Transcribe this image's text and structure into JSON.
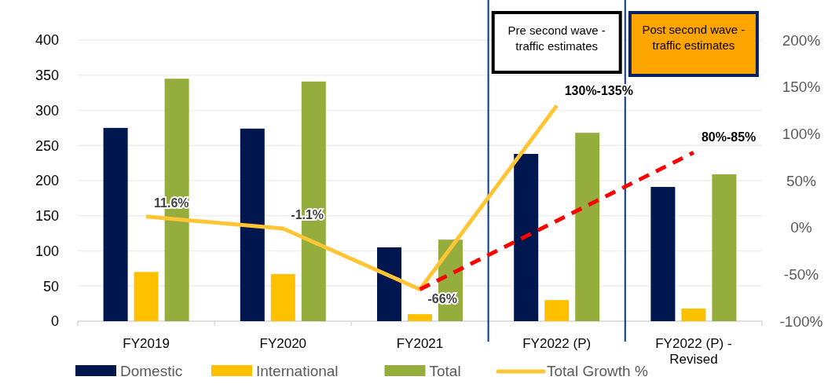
{
  "chart_data": {
    "type": "bar",
    "categories": [
      "FY2019",
      "FY2020",
      "FY2021",
      "FY2022 (P)",
      "FY2022 (P) - Revised"
    ],
    "series": [
      {
        "name": "Domestic",
        "color": "#00164e",
        "values": [
          275,
          274,
          105,
          238,
          191
        ]
      },
      {
        "name": "International",
        "color": "#ffc000",
        "values": [
          70,
          67,
          10,
          30,
          18
        ]
      },
      {
        "name": "Total",
        "color": "#94ad3c",
        "values": [
          345,
          341,
          116,
          268,
          209
        ]
      },
      {
        "name": "Total Growth %",
        "type": "line",
        "axis": "y2",
        "color": "#ffc534",
        "line_style": "solid",
        "values": [
          11.6,
          -1.1,
          -66,
          130,
          null
        ],
        "value_labels": [
          "11.6%",
          "-1.1%",
          "-66%",
          "130%-135%",
          null
        ]
      },
      {
        "type": "line",
        "axis": "y2",
        "color": "#ff0000",
        "line_style": "dashed",
        "values": [
          null,
          null,
          -66,
          null,
          80
        ],
        "value_labels": [
          null,
          null,
          null,
          null,
          "80%-85%"
        ]
      }
    ],
    "ylim": [
      0,
      400
    ],
    "yticks": [
      0,
      50,
      100,
      150,
      200,
      250,
      300,
      350,
      400
    ],
    "y2lim": [
      -100,
      200
    ],
    "y2ticks": [
      {
        "value": -100,
        "label": "-100%"
      },
      {
        "value": -50,
        "label": "-50%"
      },
      {
        "value": 0,
        "label": "0%"
      },
      {
        "value": 50,
        "label": "50%"
      },
      {
        "value": 100,
        "label": "100%"
      },
      {
        "value": 150,
        "label": "150%"
      },
      {
        "value": 200,
        "label": "200%"
      }
    ],
    "bands": [
      {
        "axis": "x",
        "from": "FY2022 (P)",
        "to": "FY2022 (P)",
        "label": "Pre second wave - traffic estimates",
        "color": "#ffffff"
      },
      {
        "axis": "x",
        "from": "FY2022 (P) - Revised",
        "to": "FY2022 (P) - Revised",
        "label": "Post second wave - traffic estimates",
        "color": "#ffa500"
      }
    ],
    "grid": "y",
    "legend": "bottom"
  }
}
